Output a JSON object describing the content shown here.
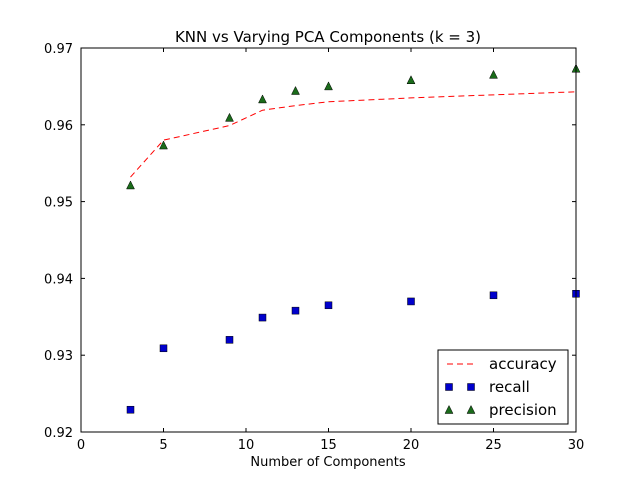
{
  "chart_data": {
    "type": "line",
    "title": "KNN vs Varying PCA Components (k = 3)",
    "xlabel": "Number of Components",
    "ylabel": "",
    "xlim": [
      0,
      30
    ],
    "ylim": [
      0.92,
      0.97
    ],
    "xticks": [
      0,
      5,
      10,
      15,
      20,
      25,
      30
    ],
    "xtick_labels": [
      "0",
      "5",
      "10",
      "15",
      "20",
      "25",
      "30"
    ],
    "yticks": [
      0.92,
      0.93,
      0.94,
      0.95,
      0.96,
      0.97
    ],
    "ytick_labels": [
      "0.92",
      "0.93",
      "0.94",
      "0.95",
      "0.96",
      "0.97"
    ],
    "grid": false,
    "legend_position": "lower-right",
    "x": [
      3,
      5,
      9,
      11,
      13,
      15,
      20,
      25,
      30
    ],
    "series": [
      {
        "name": "accuracy",
        "style": "dashed-line",
        "color": "#ff0000",
        "values": [
          0.9532,
          0.958,
          0.9599,
          0.9619,
          0.9625,
          0.963,
          0.9635,
          0.9639,
          0.9643
        ]
      },
      {
        "name": "recall",
        "style": "square-marker",
        "color": "#0000cc",
        "values": [
          0.9229,
          0.9309,
          0.932,
          0.9349,
          0.9358,
          0.9365,
          0.937,
          0.9378,
          0.938
        ]
      },
      {
        "name": "precision",
        "style": "triangle-marker",
        "color": "#1a6b1a",
        "values": [
          0.9521,
          0.9573,
          0.9609,
          0.9633,
          0.9644,
          0.965,
          0.9658,
          0.9665,
          0.9673
        ]
      }
    ]
  }
}
